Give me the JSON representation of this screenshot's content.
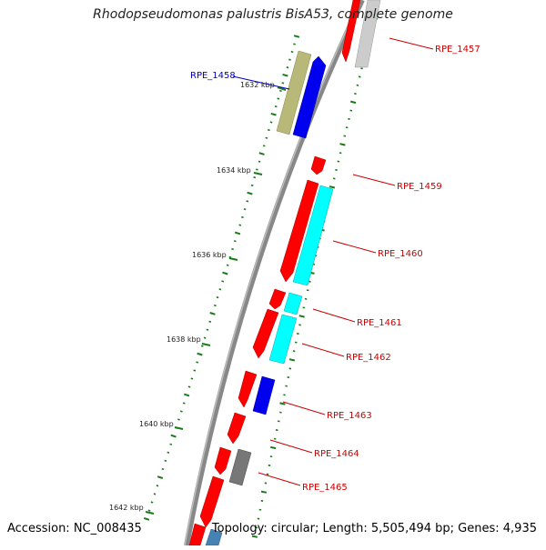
{
  "title": "Rhodopseudomonas palustris BisA53, complete genome",
  "footer": {
    "accession": "Accession: NC_008435",
    "summary": "Topology: circular; Length: 5,505,494 bp; Genes: 4,935"
  },
  "colors": {
    "backbone": "#888888",
    "tick": "#1a7a1a",
    "gene_label": "#cc0000",
    "highlight_label": "#0000cc",
    "red": "#ff0000",
    "cyan": "#00ffff",
    "blue": "#0000ee",
    "olive": "#b8b878",
    "gray": "#777777",
    "light_gray": "#cccccc",
    "steel": "#4682b4"
  },
  "kbp_labels": [
    {
      "kbp": 1632,
      "text": "1632 kbp"
    },
    {
      "kbp": 1634,
      "text": "1634 kbp"
    },
    {
      "kbp": 1636,
      "text": "1636 kbp"
    },
    {
      "kbp": 1638,
      "text": "1638 kbp"
    },
    {
      "kbp": 1640,
      "text": "1640 kbp"
    },
    {
      "kbp": 1642,
      "text": "1642 kbp"
    }
  ],
  "gene_labels": [
    {
      "text": "RPE_1457",
      "side": "right",
      "highlight": false
    },
    {
      "text": "RPE_1458",
      "side": "left",
      "highlight": true
    },
    {
      "text": "RPE_1459",
      "side": "right",
      "highlight": false
    },
    {
      "text": "RPE_1460",
      "side": "right",
      "highlight": false
    },
    {
      "text": "RPE_1461",
      "side": "right",
      "highlight": false
    },
    {
      "text": "RPE_1462",
      "side": "right",
      "highlight": false
    },
    {
      "text": "RPE_1463",
      "side": "right",
      "highlight": false
    },
    {
      "text": "RPE_1464",
      "side": "right",
      "highlight": false
    },
    {
      "text": "RPE_1465",
      "side": "right",
      "highlight": false
    }
  ]
}
